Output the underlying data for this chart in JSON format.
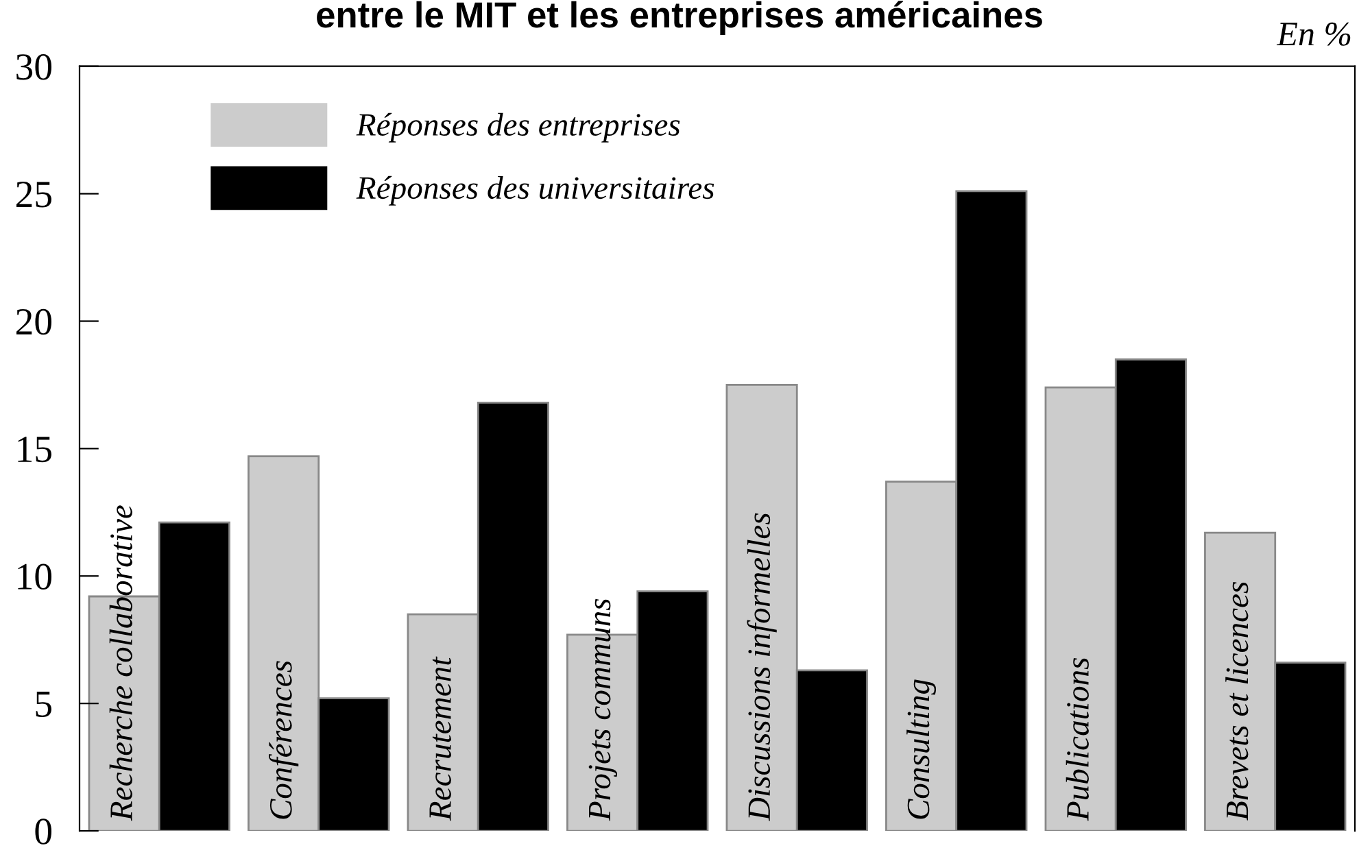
{
  "chart_data": {
    "type": "bar",
    "title": "entre le MIT et les entreprises américaines",
    "categories": [
      "Recherche collaborative",
      "Conférences",
      "Recrutement",
      "Projets communs",
      "Discussions informelles",
      "Consulting",
      "Publications",
      "Brevets et licences"
    ],
    "series": [
      {
        "name": "Réponses des entreprises",
        "color": "#cccccc",
        "values": [
          9.2,
          14.7,
          8.5,
          7.7,
          17.5,
          13.7,
          17.4,
          11.7
        ]
      },
      {
        "name": "Réponses des universitaires",
        "color": "#000000",
        "values": [
          12.1,
          5.2,
          16.8,
          9.4,
          6.3,
          25.1,
          18.5,
          6.6
        ]
      }
    ],
    "annotations": [
      "En %"
    ],
    "ylim": [
      0,
      30
    ],
    "yticks": [
      0,
      5,
      10,
      15,
      20,
      25,
      30
    ],
    "grid": false,
    "legend": "top left",
    "tick_labels": "y"
  }
}
